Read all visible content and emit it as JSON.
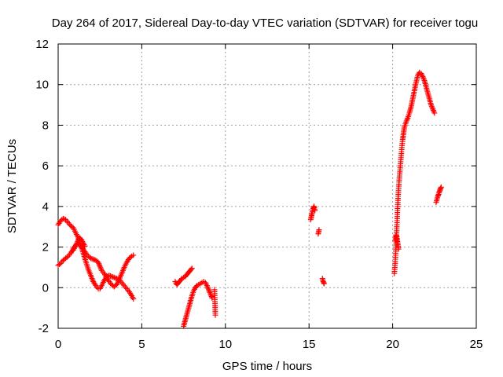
{
  "chart_data": {
    "type": "scatter",
    "title": "Day 264 of 2017, Sidereal Day-to-day VTEC variation (SDTVAR) for receiver togu",
    "xlabel": "GPS time / hours",
    "ylabel": "SDTVAR / TECUs",
    "xlim": [
      0,
      25
    ],
    "ylim": [
      -2,
      12
    ],
    "xticks": [
      0,
      5,
      10,
      15,
      20,
      25
    ],
    "yticks": [
      -2,
      0,
      2,
      4,
      6,
      8,
      10,
      12
    ],
    "grid": true,
    "legend": "none",
    "marker": "+",
    "colors": {
      "marker": "#ff0000",
      "grid": "#a0a0a0",
      "axis": "#000000"
    },
    "series": [
      {
        "name": "SDTVAR",
        "segments": [
          {
            "x": [
              0.0,
              0.15,
              0.3,
              0.45,
              0.6,
              0.75,
              0.9,
              1.05,
              1.2,
              1.35,
              1.5,
              1.65,
              1.8,
              1.95,
              2.1,
              2.25,
              2.4,
              2.5,
              2.6,
              2.75,
              2.9,
              3.05,
              3.2,
              3.35,
              3.5,
              3.65,
              3.8,
              3.95,
              4.1,
              4.25,
              4.4,
              4.5
            ],
            "y": [
              3.1,
              3.3,
              3.4,
              3.35,
              3.2,
              3.05,
              2.95,
              2.7,
              2.45,
              2.1,
              1.7,
              1.3,
              0.9,
              0.6,
              0.3,
              0.1,
              -0.05,
              -0.05,
              0.1,
              0.35,
              0.55,
              0.6,
              0.55,
              0.5,
              0.45,
              0.4,
              0.25,
              0.1,
              -0.05,
              -0.2,
              -0.4,
              -0.55
            ]
          },
          {
            "x": [
              0.0,
              0.15,
              0.3,
              0.45,
              0.6,
              0.75,
              0.9,
              1.05,
              1.2,
              1.35,
              1.5,
              1.65,
              1.8,
              1.95,
              2.1,
              2.25,
              2.4,
              2.5,
              2.6,
              2.75,
              2.9,
              3.05,
              3.2,
              3.35,
              3.5,
              3.65,
              3.8,
              3.95,
              4.1,
              4.25,
              4.4,
              4.5
            ],
            "y": [
              1.1,
              1.2,
              1.35,
              1.45,
              1.55,
              1.7,
              1.9,
              2.1,
              2.2,
              2.05,
              1.9,
              1.7,
              1.55,
              1.45,
              1.4,
              1.35,
              1.25,
              1.05,
              0.85,
              0.7,
              0.5,
              0.3,
              0.15,
              0.05,
              0.15,
              0.4,
              0.7,
              1.0,
              1.25,
              1.45,
              1.55,
              1.6
            ]
          },
          {
            "x": [
              0.9,
              1.0,
              1.1,
              1.2,
              1.3,
              1.4,
              1.5,
              1.6
            ],
            "y": [
              1.85,
              2.0,
              2.15,
              2.35,
              2.45,
              2.35,
              2.2,
              2.05
            ]
          },
          {
            "x": [
              7.0,
              7.1,
              7.2,
              7.3,
              7.4,
              7.5,
              7.6,
              7.7,
              7.8,
              7.9,
              8.0
            ],
            "y": [
              0.3,
              0.15,
              0.25,
              0.35,
              0.45,
              0.5,
              0.55,
              0.65,
              0.75,
              0.85,
              0.95
            ]
          },
          {
            "x": [
              7.5,
              7.6,
              7.7,
              7.8,
              7.9,
              8.0,
              8.1,
              8.2,
              8.3,
              8.4,
              8.5,
              8.6,
              8.7,
              8.8,
              8.9,
              9.0,
              9.1,
              9.2
            ],
            "y": [
              -1.9,
              -1.6,
              -1.3,
              -1.0,
              -0.7,
              -0.4,
              -0.15,
              0.0,
              0.1,
              0.15,
              0.2,
              0.25,
              0.3,
              0.25,
              0.1,
              -0.1,
              -0.3,
              -0.5
            ]
          },
          {
            "x": [
              9.35,
              9.4
            ],
            "y": [
              -0.1,
              -1.35
            ]
          },
          {
            "x": [
              15.1,
              15.15,
              15.2,
              15.25,
              15.3,
              15.35
            ],
            "y": [
              3.35,
              3.55,
              3.75,
              3.9,
              4.0,
              3.8
            ]
          },
          {
            "x": [
              15.55,
              15.6
            ],
            "y": [
              2.65,
              2.85
            ]
          },
          {
            "x": [
              15.8,
              15.85,
              15.9
            ],
            "y": [
              0.45,
              0.3,
              0.2
            ]
          },
          {
            "x": [
              20.1,
              20.15,
              20.2,
              20.25,
              20.3,
              20.35,
              20.4,
              20.45,
              20.5,
              20.55,
              20.6,
              20.65,
              20.7,
              20.8,
              20.9,
              21.0,
              21.1,
              21.2,
              21.3,
              21.4,
              21.5,
              21.6,
              21.7,
              21.8,
              21.9,
              22.0,
              22.1,
              22.2,
              22.3,
              22.4,
              22.5
            ],
            "y": [
              0.7,
              1.2,
              2.0,
              3.0,
              4.0,
              4.8,
              5.4,
              5.9,
              6.4,
              6.9,
              7.3,
              7.6,
              7.9,
              8.15,
              8.35,
              8.6,
              8.9,
              9.3,
              9.7,
              10.1,
              10.45,
              10.6,
              10.55,
              10.4,
              10.2,
              9.9,
              9.6,
              9.3,
              9.0,
              8.8,
              8.6
            ]
          },
          {
            "x": [
              20.15,
              20.2,
              20.25,
              20.3,
              20.35
            ],
            "y": [
              2.3,
              2.6,
              2.5,
              2.2,
              1.9
            ]
          },
          {
            "x": [
              22.6,
              22.65,
              22.7,
              22.75,
              22.8,
              22.85,
              22.9
            ],
            "y": [
              4.2,
              4.35,
              4.5,
              4.6,
              4.75,
              4.85,
              4.95
            ]
          }
        ]
      }
    ]
  }
}
